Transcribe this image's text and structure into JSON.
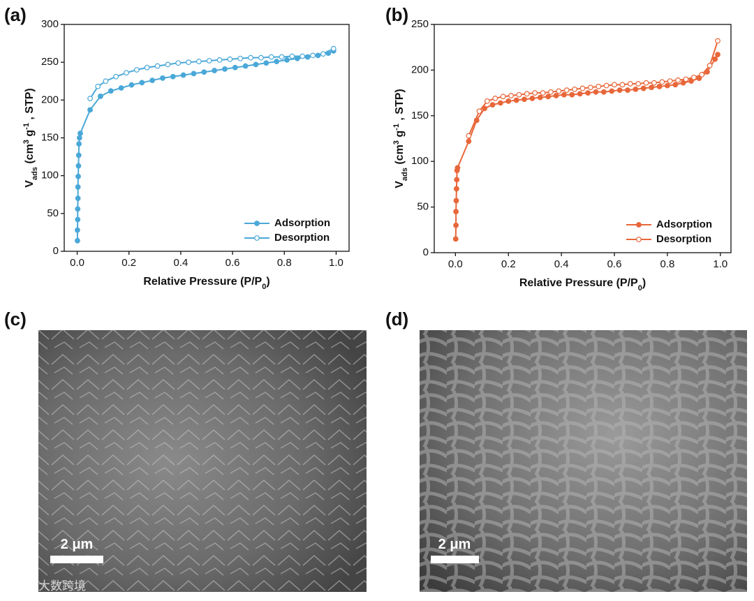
{
  "chart_data": [
    {
      "type": "line",
      "panel_label": "(a)",
      "xlabel": [
        {
          "text": "Relative Pressure (P/P"
        },
        {
          "text": "0",
          "baseline": "sub"
        },
        {
          "text": ")"
        }
      ],
      "ylabel": [
        {
          "text": "V"
        },
        {
          "text": "ads",
          "baseline": "sub"
        },
        {
          "text": " (cm"
        },
        {
          "text": "3",
          "baseline": "super"
        },
        {
          "text": " g"
        },
        {
          "text": "-1",
          "baseline": "super"
        },
        {
          "text": " ,  STP)"
        }
      ],
      "xlim": [
        -0.05,
        1.05
      ],
      "ylim": [
        0,
        300
      ],
      "xticks": [
        {
          "value": 0,
          "label": "0.0"
        },
        {
          "value": 0.2,
          "label": "0.2"
        },
        {
          "value": 0.4,
          "label": "0.4"
        },
        {
          "value": 0.6,
          "label": "0.6"
        },
        {
          "value": 0.8,
          "label": "0.8"
        },
        {
          "value": 1,
          "label": "1.0"
        }
      ],
      "yticks": [
        0,
        50,
        100,
        150,
        200,
        250,
        300
      ],
      "legend": "lower right",
      "series": [
        {
          "name": "Adsorption",
          "color": "#4aa8d8",
          "marker": "filled",
          "x": [
            0.001,
            0.001,
            0.002,
            0.002,
            0.003,
            0.003,
            0.004,
            0.005,
            0.006,
            0.007,
            0.009,
            0.012,
            0.05,
            0.09,
            0.13,
            0.17,
            0.21,
            0.25,
            0.29,
            0.33,
            0.37,
            0.41,
            0.45,
            0.49,
            0.53,
            0.57,
            0.61,
            0.65,
            0.69,
            0.73,
            0.77,
            0.81,
            0.85,
            0.89,
            0.93,
            0.97,
            0.99
          ],
          "values": [
            14,
            28,
            42,
            56,
            70,
            85,
            99,
            113,
            127,
            142,
            150,
            156,
            187,
            205,
            212,
            216,
            220,
            223,
            226,
            229,
            231,
            233,
            235,
            237,
            239,
            241,
            243,
            245,
            247,
            249,
            251,
            253,
            255,
            257,
            259,
            262,
            265
          ]
        },
        {
          "name": "Desorption",
          "color": "#4aa8d8",
          "marker": "open",
          "x": [
            0.99,
            0.95,
            0.91,
            0.87,
            0.83,
            0.79,
            0.75,
            0.71,
            0.67,
            0.63,
            0.59,
            0.55,
            0.51,
            0.47,
            0.43,
            0.39,
            0.35,
            0.31,
            0.27,
            0.23,
            0.19,
            0.15,
            0.11,
            0.08,
            0.05
          ],
          "values": [
            268,
            261,
            259,
            258,
            258,
            257,
            257,
            256,
            256,
            255,
            254,
            253,
            252,
            251,
            250,
            249,
            247,
            245,
            243,
            240,
            236,
            231,
            225,
            218,
            202
          ]
        }
      ]
    },
    {
      "type": "line",
      "panel_label": "(b)",
      "xlabel": [
        {
          "text": "Relative Pressure (P/P"
        },
        {
          "text": "0",
          "baseline": "sub"
        },
        {
          "text": ")"
        }
      ],
      "ylabel": [
        {
          "text": "V"
        },
        {
          "text": "ads",
          "baseline": "sub"
        },
        {
          "text": " (cm"
        },
        {
          "text": "3",
          "baseline": "super"
        },
        {
          "text": " g"
        },
        {
          "text": "-1",
          "baseline": "super"
        },
        {
          "text": " ,  STP)"
        }
      ],
      "xlim": [
        -0.08,
        1.04
      ],
      "ylim": [
        0,
        250
      ],
      "xticks": [
        {
          "value": 0,
          "label": "0.0"
        },
        {
          "value": 0.2,
          "label": "0.2"
        },
        {
          "value": 0.4,
          "label": "0.4"
        },
        {
          "value": 0.6,
          "label": "0.6"
        },
        {
          "value": 0.8,
          "label": "0.8"
        },
        {
          "value": 1,
          "label": "1.0"
        }
      ],
      "yticks": [
        0,
        50,
        100,
        150,
        200,
        250
      ],
      "legend": "lower right",
      "series": [
        {
          "name": "Adsorption",
          "color": "#e8673a",
          "marker": "filled",
          "x": [
            0.001,
            0.002,
            0.002,
            0.003,
            0.004,
            0.005,
            0.006,
            0.008,
            0.05,
            0.08,
            0.11,
            0.14,
            0.17,
            0.2,
            0.23,
            0.26,
            0.29,
            0.32,
            0.35,
            0.38,
            0.41,
            0.44,
            0.47,
            0.5,
            0.53,
            0.56,
            0.59,
            0.62,
            0.65,
            0.68,
            0.71,
            0.74,
            0.77,
            0.8,
            0.83,
            0.86,
            0.89,
            0.92,
            0.95,
            0.98,
            0.99
          ],
          "values": [
            15,
            30,
            45,
            57,
            70,
            80,
            90,
            93,
            122,
            145,
            158,
            162,
            164,
            166,
            167,
            168,
            169,
            170,
            171,
            172,
            173,
            173,
            174,
            175,
            176,
            176,
            177,
            178,
            178,
            179,
            180,
            181,
            182,
            183,
            184,
            186,
            188,
            191,
            198,
            212,
            217
          ]
        },
        {
          "name": "Desorption",
          "color": "#e8673a",
          "marker": "open",
          "x": [
            0.99,
            0.96,
            0.93,
            0.9,
            0.87,
            0.84,
            0.81,
            0.78,
            0.75,
            0.72,
            0.69,
            0.66,
            0.63,
            0.6,
            0.57,
            0.54,
            0.51,
            0.48,
            0.45,
            0.42,
            0.39,
            0.36,
            0.33,
            0.3,
            0.27,
            0.24,
            0.21,
            0.18,
            0.15,
            0.12,
            0.09,
            0.05
          ],
          "values": [
            232,
            205,
            195,
            192,
            190,
            189,
            188,
            187,
            186,
            186,
            185,
            185,
            184,
            184,
            183,
            182,
            181,
            180,
            179,
            178,
            177,
            176,
            175,
            175,
            174,
            173,
            172,
            171,
            169,
            166,
            155,
            128
          ]
        }
      ]
    }
  ],
  "images": [
    {
      "panel_label": "(c)",
      "scale_bar": "2 μm"
    },
    {
      "panel_label": "(d)",
      "scale_bar": "2 μm"
    }
  ],
  "watermark": "大数跨境"
}
